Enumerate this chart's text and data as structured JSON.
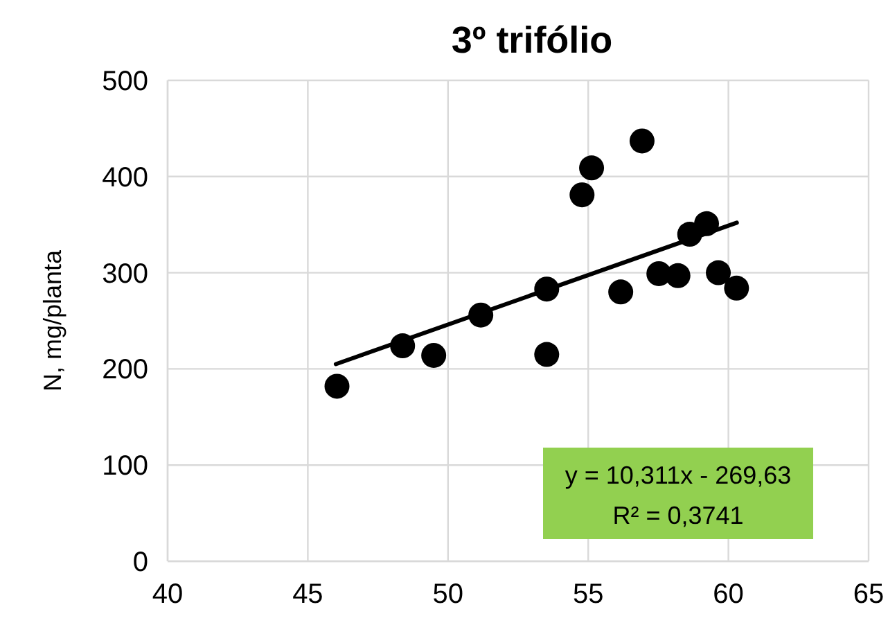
{
  "chart_data": {
    "type": "scatter",
    "title": "3º trifólio",
    "ylabel": "N, mg/planta",
    "xlim": [
      40,
      65
    ],
    "xticks": [
      40,
      45,
      50,
      55,
      60,
      65
    ],
    "ylim": [
      0,
      500
    ],
    "yticks": [
      0,
      100,
      200,
      300,
      400,
      500
    ],
    "grid": true,
    "series": [
      {
        "marker": "circle",
        "color": "#000000",
        "x": [
          46.04,
          48.38,
          49.49,
          51.17,
          53.52,
          53.52,
          54.78,
          55.12,
          56.92,
          56.16,
          57.52,
          58.2,
          58.62,
          59.22,
          59.64,
          60.29
        ],
        "values": [
          182,
          224,
          214,
          256,
          283,
          215,
          381,
          409,
          437,
          280,
          299,
          297,
          340,
          351,
          300,
          284
        ]
      },
      {
        "type": "line",
        "marker": "none",
        "color": "#000000",
        "x": [
          46,
          60.3
        ],
        "values": [
          205,
          352
        ]
      }
    ],
    "annotations": [
      "y = 10,311x - 269,63",
      "R² = 0,3741"
    ]
  }
}
